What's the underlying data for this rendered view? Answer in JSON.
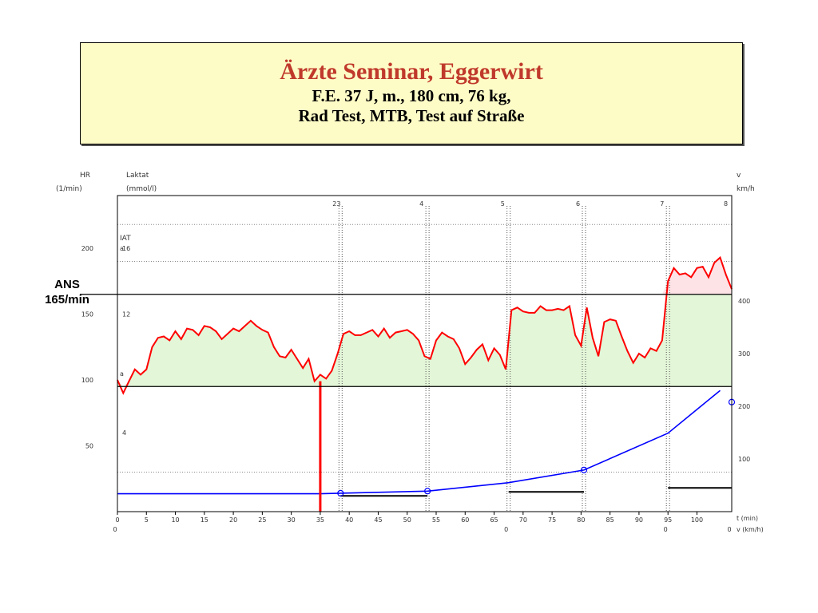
{
  "header": {
    "title": "Ärzte Seminar, Eggerwirt",
    "line1": "F.E. 37 J, m., 180 cm, 76 kg,",
    "line2": "Rad Test,  MTB, Test auf Straße"
  },
  "annotation": {
    "line1": "ANS",
    "line2": "165/min"
  },
  "chart_data": {
    "type": "line",
    "axis_titles": {
      "hr": "HR",
      "hr_unit": "(1/min)",
      "lactate": "Laktat",
      "lactate_unit": "(mmol/l)",
      "speed": "v",
      "speed_unit": "km/h",
      "time": "t (min)",
      "speed_x": "v (km/h)"
    },
    "xlim": [
      0,
      106
    ],
    "ylim_hr": [
      0,
      240
    ],
    "ylim_speed": [
      0,
      600
    ],
    "x_ticks": [
      "0",
      "5",
      "10",
      "15",
      "20",
      "25",
      "30",
      "35",
      "40",
      "45",
      "50",
      "55",
      "60",
      "65",
      "70",
      "75",
      "80",
      "85",
      "90",
      "95",
      "100"
    ],
    "second_row_ticks": [
      {
        "t": 0,
        "label": "0"
      },
      {
        "t": 67.5,
        "label": "0"
      },
      {
        "t": 95,
        "label": "0"
      },
      {
        "t": 106,
        "label": "0"
      }
    ],
    "hr_ticks": [
      "50",
      "100",
      "150",
      "200"
    ],
    "lactate_ticks": [
      {
        "hr": 60,
        "label": "4"
      },
      {
        "hr": 150,
        "label": "12"
      },
      {
        "hr": 200,
        "label": "16"
      }
    ],
    "speed_ticks": [
      "100",
      "200",
      "300",
      "400"
    ],
    "iat_label": "IAT",
    "iat_values": [
      {
        "hr": 200,
        "label": "a"
      },
      {
        "hr": 105,
        "label": "a"
      }
    ],
    "stages": [
      {
        "t": 38.5,
        "label": "23"
      },
      {
        "t": 53.5,
        "label": "4"
      },
      {
        "t": 67.5,
        "label": "5"
      },
      {
        "t": 80.5,
        "label": "6"
      },
      {
        "t": 95,
        "label": "7"
      },
      {
        "t": 106,
        "label": "8"
      }
    ],
    "gridlines_hr": [
      30,
      190,
      218
    ],
    "thresholds": {
      "ans_hr": 165,
      "base_hr": 95
    },
    "series": [
      {
        "color": "#ff0000",
        "points": [
          [
            0,
            100
          ],
          [
            1,
            90
          ],
          [
            2,
            99
          ],
          [
            3,
            108
          ],
          [
            4,
            104
          ],
          [
            5,
            108
          ],
          [
            6,
            125
          ],
          [
            7,
            132
          ],
          [
            8,
            133
          ],
          [
            9,
            130
          ],
          [
            10,
            137
          ],
          [
            11,
            131
          ],
          [
            12,
            139
          ],
          [
            13,
            138
          ],
          [
            14,
            134
          ],
          [
            15,
            141
          ],
          [
            16,
            140
          ],
          [
            17,
            137
          ],
          [
            18,
            131
          ],
          [
            19,
            135
          ],
          [
            20,
            139
          ],
          [
            21,
            137
          ],
          [
            22,
            141
          ],
          [
            23,
            145
          ],
          [
            24,
            141
          ],
          [
            25,
            138
          ],
          [
            26,
            136
          ],
          [
            27,
            125
          ],
          [
            28,
            118
          ],
          [
            29,
            117
          ],
          [
            30,
            123
          ],
          [
            31,
            116
          ],
          [
            32,
            109
          ],
          [
            33,
            116
          ],
          [
            34,
            99
          ],
          [
            35,
            104
          ],
          [
            36,
            101
          ],
          [
            37,
            107
          ],
          [
            38,
            120
          ],
          [
            39,
            135
          ],
          [
            40,
            137
          ],
          [
            41,
            134
          ],
          [
            42,
            134
          ],
          [
            43,
            136
          ],
          [
            44,
            138
          ],
          [
            45,
            133
          ],
          [
            46,
            139
          ],
          [
            47,
            132
          ],
          [
            48,
            136
          ],
          [
            49,
            137
          ],
          [
            50,
            138
          ],
          [
            51,
            135
          ],
          [
            52,
            130
          ],
          [
            53,
            118
          ],
          [
            54,
            116
          ],
          [
            55,
            130
          ],
          [
            56,
            136
          ],
          [
            57,
            133
          ],
          [
            58,
            131
          ],
          [
            59,
            124
          ],
          [
            60,
            112
          ],
          [
            61,
            117
          ],
          [
            62,
            123
          ],
          [
            63,
            127
          ],
          [
            64,
            115
          ],
          [
            65,
            124
          ],
          [
            66,
            119
          ],
          [
            67,
            108
          ],
          [
            68,
            153
          ],
          [
            69,
            155
          ],
          [
            70,
            152
          ],
          [
            71,
            151
          ],
          [
            72,
            151
          ],
          [
            73,
            156
          ],
          [
            74,
            153
          ],
          [
            75,
            153
          ],
          [
            76,
            154
          ],
          [
            77,
            153
          ],
          [
            78,
            156
          ],
          [
            79,
            134
          ],
          [
            80,
            126
          ],
          [
            81,
            155
          ],
          [
            82,
            132
          ],
          [
            83,
            118
          ],
          [
            84,
            144
          ],
          [
            85,
            146
          ],
          [
            86,
            145
          ],
          [
            87,
            133
          ],
          [
            88,
            122
          ],
          [
            89,
            113
          ],
          [
            90,
            120
          ],
          [
            91,
            117
          ],
          [
            92,
            124
          ],
          [
            93,
            122
          ],
          [
            94,
            130
          ],
          [
            95,
            175
          ],
          [
            96,
            185
          ],
          [
            97,
            180
          ],
          [
            98,
            181
          ],
          [
            99,
            178
          ],
          [
            100,
            185
          ],
          [
            101,
            186
          ],
          [
            102,
            178
          ],
          [
            103,
            189
          ],
          [
            104,
            193
          ],
          [
            105,
            180
          ],
          [
            106,
            169
          ]
        ]
      },
      {
        "color": "#0000ff",
        "points": [
          [
            0,
            34
          ],
          [
            35,
            34
          ],
          [
            38.5,
            35
          ],
          [
            53.5,
            39
          ],
          [
            67.5,
            55
          ],
          [
            80.5,
            79
          ],
          [
            95,
            149
          ],
          [
            104,
            230
          ]
        ]
      }
    ],
    "speed_markers": [
      [
        38.5,
        35
      ],
      [
        53.5,
        39
      ],
      [
        80.5,
        79
      ],
      [
        106,
        208
      ]
    ],
    "stage_bars": [
      [
        38.5,
        53.5,
        12
      ],
      [
        67.5,
        80.5,
        15
      ],
      [
        95,
        106,
        18
      ]
    ],
    "test_spike": {
      "t": 35,
      "hr_from": 99,
      "hr_to": 0
    }
  }
}
